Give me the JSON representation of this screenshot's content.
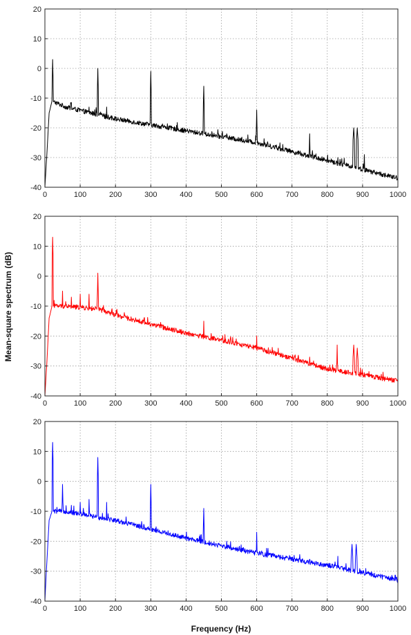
{
  "colors": {
    "background": "#ffffff",
    "panel_1_line": "#000000",
    "panel_2_line": "#ff0000",
    "panel_3_line": "#0000ff",
    "grid": "#9a9a9a"
  },
  "chart_data": [
    {
      "type": "line",
      "title": "",
      "xlabel": "",
      "ylabel": "",
      "xlim": [
        0,
        1000
      ],
      "ylim": [
        -40,
        20
      ],
      "xticks": [
        0,
        100,
        200,
        300,
        400,
        500,
        600,
        700,
        800,
        900,
        1000
      ],
      "yticks": [
        20,
        10,
        0,
        -10,
        -20,
        -30,
        -40
      ],
      "grid": true,
      "line_color": "#000000",
      "baseline": [
        [
          0,
          -40
        ],
        [
          5,
          -30
        ],
        [
          12,
          -15
        ],
        [
          20,
          -11
        ],
        [
          60,
          -13
        ],
        [
          200,
          -17
        ],
        [
          400,
          -21
        ],
        [
          600,
          -25
        ],
        [
          800,
          -31
        ],
        [
          1000,
          -37
        ]
      ],
      "peaks": [
        [
          22,
          3
        ],
        [
          150,
          0
        ],
        [
          300,
          -1
        ],
        [
          450,
          -6
        ],
        [
          600,
          -14
        ],
        [
          750,
          -22
        ],
        [
          875,
          -20
        ],
        [
          885,
          -20
        ],
        [
          905,
          -29
        ],
        [
          125,
          -13
        ],
        [
          175,
          -13
        ],
        [
          515,
          -22
        ],
        [
          830,
          -30
        ]
      ]
    },
    {
      "type": "line",
      "title": "",
      "xlabel": "",
      "ylabel": "Mean-square spectrum (dB)",
      "xlim": [
        0,
        1000
      ],
      "ylim": [
        -40,
        20
      ],
      "xticks": [
        0,
        100,
        200,
        300,
        400,
        500,
        600,
        700,
        800,
        900,
        1000
      ],
      "yticks": [
        20,
        10,
        0,
        -10,
        -20,
        -30,
        -40
      ],
      "grid": true,
      "line_color": "#ff0000",
      "baseline": [
        [
          0,
          -40
        ],
        [
          5,
          -30
        ],
        [
          12,
          -14
        ],
        [
          20,
          -10
        ],
        [
          60,
          -10
        ],
        [
          150,
          -11
        ],
        [
          200,
          -13
        ],
        [
          400,
          -19
        ],
        [
          600,
          -24
        ],
        [
          800,
          -31
        ],
        [
          1000,
          -35
        ]
      ],
      "peaks": [
        [
          22,
          13
        ],
        [
          50,
          -5
        ],
        [
          75,
          -7
        ],
        [
          100,
          -6
        ],
        [
          125,
          -6
        ],
        [
          150,
          1
        ],
        [
          275,
          -16
        ],
        [
          450,
          -15
        ],
        [
          520,
          -21
        ],
        [
          600,
          -20
        ],
        [
          750,
          -27
        ],
        [
          828,
          -23
        ],
        [
          875,
          -23
        ],
        [
          885,
          -24
        ],
        [
          940,
          -33
        ]
      ]
    },
    {
      "type": "line",
      "title": "",
      "xlabel": "Frequency (Hz)",
      "ylabel": "",
      "xlim": [
        0,
        1000
      ],
      "ylim": [
        -40,
        20
      ],
      "xticks": [
        0,
        100,
        200,
        300,
        400,
        500,
        600,
        700,
        800,
        900,
        1000
      ],
      "yticks": [
        20,
        10,
        0,
        -10,
        -20,
        -30,
        -40
      ],
      "grid": true,
      "line_color": "#0000ff",
      "baseline": [
        [
          0,
          -40
        ],
        [
          5,
          -28
        ],
        [
          12,
          -13
        ],
        [
          20,
          -10
        ],
        [
          60,
          -10
        ],
        [
          150,
          -12
        ],
        [
          200,
          -13
        ],
        [
          400,
          -19
        ],
        [
          600,
          -24
        ],
        [
          800,
          -28
        ],
        [
          1000,
          -33
        ]
      ],
      "peaks": [
        [
          22,
          13
        ],
        [
          50,
          -1
        ],
        [
          75,
          -8
        ],
        [
          100,
          -7
        ],
        [
          125,
          -6
        ],
        [
          150,
          8
        ],
        [
          175,
          -7
        ],
        [
          300,
          -1
        ],
        [
          450,
          -9
        ],
        [
          515,
          -20
        ],
        [
          600,
          -17
        ],
        [
          750,
          -26
        ],
        [
          830,
          -25
        ],
        [
          870,
          -21
        ],
        [
          882,
          -21
        ]
      ]
    }
  ]
}
